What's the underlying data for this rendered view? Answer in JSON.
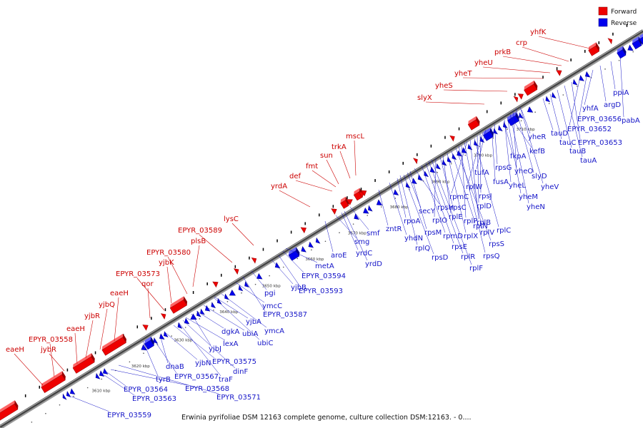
{
  "legend": {
    "forward_label": "Forward",
    "reverse_label": "Reverse",
    "forward_color": "#ee0000",
    "reverse_color": "#0000ee"
  },
  "caption": "Erwinia pyrifoliae DSM 12163 complete genome, culture collection DSM:12163. - 0....",
  "ticks": [
    "3610 kbp",
    "3620 kbp",
    "3630 kbp",
    "3640 kbp",
    "3650 kbp",
    "3660 kbp",
    "3670 kbp",
    "3680 kbp",
    "3690 kbp",
    "3700 kbp",
    "3710 kbp"
  ],
  "forward_labels": [
    "eaeH",
    "EPYR_03558",
    "jybR",
    "eaeH",
    "yjbR",
    "yjbQ",
    "eaeH",
    "qor",
    "EPYR_03573",
    "yjbK",
    "EPYR_03580",
    "plsB",
    "EPYR_03589",
    "lysC",
    "yrdA",
    "def",
    "fmt",
    "sun",
    "trkA",
    "mscL",
    "slyX",
    "yheS",
    "yheT",
    "yheU",
    "prkB",
    "crp",
    "yhfK"
  ],
  "reverse_labels": [
    "EPYR_03559",
    "EPYR_03563",
    "EPYR_03564",
    "EPYR_03568",
    "EPYR_03571",
    "EPYR_03567",
    "tyrB",
    "dnaB",
    "yjbN",
    "EPYR_03575",
    "dinF",
    "traF",
    "lexA",
    "dgkA",
    "ubiA",
    "yjbJ",
    "ubiC",
    "ymcA",
    "yjbA",
    "ymcC",
    "EPYR_03587",
    "pgi",
    "yjbB",
    "EPYR_03593",
    "EPYR_03594",
    "metA",
    "aroE",
    "smg",
    "yrdC",
    "yrdD",
    "smf",
    "zntR",
    "yhdN",
    "rpoA",
    "rplQ",
    "secY",
    "rpsD",
    "rpsM",
    "rpsH",
    "rpmD",
    "rpsE",
    "rplR",
    "rplF",
    "rplO",
    "rpsC",
    "rplE",
    "rplX",
    "rplN",
    "rpsS",
    "rpsQ",
    "rplP",
    "rplV",
    "rpmC",
    "rplB",
    "rplC",
    "rplD",
    "rpsJ",
    "rplW",
    "tufA",
    "fusA",
    "rpsG",
    "yheL",
    "yheM",
    "yheN",
    "yheO",
    "slyD",
    "yheV",
    "fkpA",
    "kefB",
    "yheR",
    "tauD",
    "tauC",
    "tauB",
    "tauA",
    "EPYR_03653",
    "EPYR_03652",
    "EPYR_03656",
    "yhfA",
    "argD",
    "ppiA",
    "pabA"
  ]
}
